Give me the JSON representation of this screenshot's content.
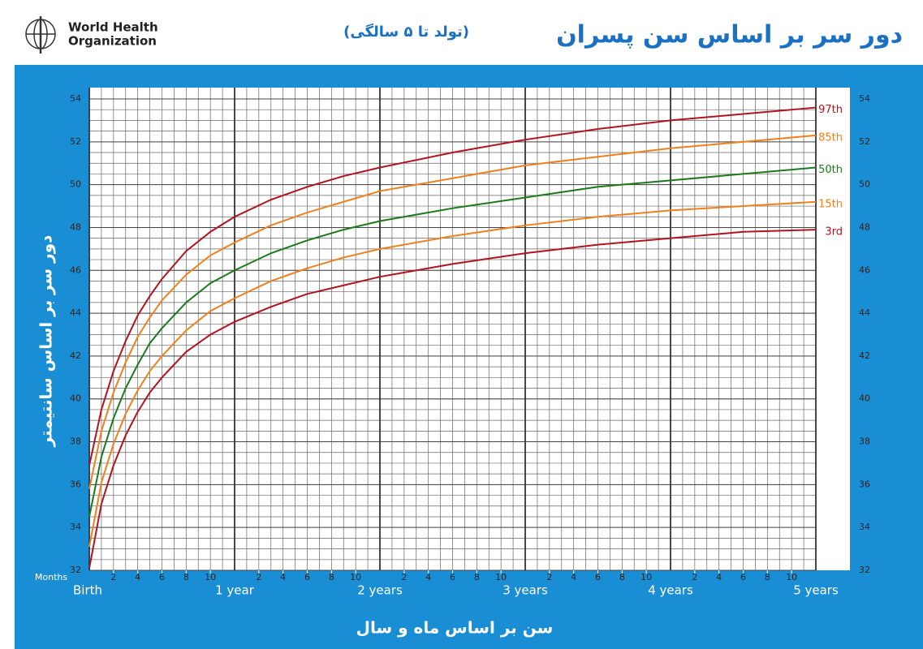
{
  "header": {
    "org": [
      "World Health",
      "Organization"
    ]
  },
  "chart_data": {
    "type": "line",
    "title": "دور سر بر اساس سن پسران",
    "subtitle": "(تولد تا ۵ سالگی)",
    "ylabel": "دور سر بر اساس سانتیمتر",
    "xlabel": "سن بر اساس ماه و سال",
    "x_unit_label": "Months",
    "x": [
      0,
      1,
      2,
      3,
      4,
      5,
      6,
      8,
      10,
      12,
      15,
      18,
      21,
      24,
      30,
      36,
      42,
      48,
      54,
      60
    ],
    "series": [
      {
        "name": "97th",
        "color": "#b3121f",
        "values": [
          36.9,
          39.5,
          41.3,
          42.7,
          43.9,
          44.8,
          45.6,
          46.9,
          47.8,
          48.5,
          49.3,
          49.9,
          50.4,
          50.8,
          51.5,
          52.1,
          52.6,
          53.0,
          53.3,
          53.6
        ]
      },
      {
        "name": "85th",
        "color": "#f0801c",
        "values": [
          35.8,
          38.5,
          40.3,
          41.7,
          42.9,
          43.8,
          44.6,
          45.8,
          46.7,
          47.3,
          48.1,
          48.7,
          49.2,
          49.7,
          50.3,
          50.9,
          51.3,
          51.7,
          52.0,
          52.3
        ]
      },
      {
        "name": "50th",
        "color": "#1b7a1b",
        "values": [
          34.5,
          37.3,
          39.1,
          40.5,
          41.6,
          42.6,
          43.3,
          44.5,
          45.4,
          46.0,
          46.8,
          47.4,
          47.9,
          48.3,
          48.9,
          49.4,
          49.9,
          50.2,
          50.5,
          50.8
        ]
      },
      {
        "name": "15th",
        "color": "#f0801c",
        "values": [
          33.1,
          36.1,
          37.9,
          39.3,
          40.4,
          41.3,
          42.0,
          43.2,
          44.1,
          44.7,
          45.5,
          46.1,
          46.6,
          47.0,
          47.6,
          48.1,
          48.5,
          48.8,
          49.0,
          49.2
        ]
      },
      {
        "name": "3rd",
        "color": "#b3121f",
        "values": [
          32.1,
          35.1,
          36.9,
          38.3,
          39.4,
          40.3,
          41.0,
          42.2,
          43.0,
          43.6,
          44.3,
          44.9,
          45.3,
          45.7,
          46.3,
          46.8,
          47.2,
          47.5,
          47.8,
          47.9
        ]
      }
    ],
    "xlim": [
      0,
      60
    ],
    "xticks": [
      {
        "value": 0,
        "label": "Birth"
      },
      {
        "value": 12,
        "label": "1 year"
      },
      {
        "value": 24,
        "label": "2 years"
      },
      {
        "value": 36,
        "label": "3 years"
      },
      {
        "value": 48,
        "label": "4 years"
      },
      {
        "value": 60,
        "label": "5 years"
      }
    ],
    "xticks_minor": [
      {
        "value": 2,
        "label": "2"
      },
      {
        "value": 4,
        "label": "4"
      },
      {
        "value": 6,
        "label": "6"
      },
      {
        "value": 8,
        "label": "8"
      },
      {
        "value": 10,
        "label": "10"
      },
      {
        "value": 14,
        "label": "2"
      },
      {
        "value": 16,
        "label": "4"
      },
      {
        "value": 18,
        "label": "6"
      },
      {
        "value": 20,
        "label": "8"
      },
      {
        "value": 22,
        "label": "10"
      },
      {
        "value": 26,
        "label": "2"
      },
      {
        "value": 28,
        "label": "4"
      },
      {
        "value": 30,
        "label": "6"
      },
      {
        "value": 32,
        "label": "8"
      },
      {
        "value": 34,
        "label": "10"
      },
      {
        "value": 38,
        "label": "2"
      },
      {
        "value": 40,
        "label": "4"
      },
      {
        "value": 42,
        "label": "6"
      },
      {
        "value": 44,
        "label": "8"
      },
      {
        "value": 46,
        "label": "10"
      },
      {
        "value": 50,
        "label": "2"
      },
      {
        "value": 52,
        "label": "4"
      },
      {
        "value": 54,
        "label": "6"
      },
      {
        "value": 56,
        "label": "8"
      },
      {
        "value": 58,
        "label": "10"
      }
    ],
    "ylim": [
      32,
      54
    ],
    "yticks": [
      32,
      34,
      36,
      38,
      40,
      42,
      44,
      46,
      48,
      50,
      52,
      54
    ],
    "grid": true
  }
}
